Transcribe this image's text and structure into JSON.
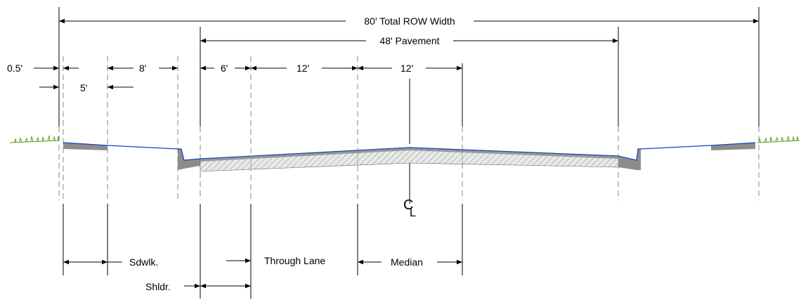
{
  "dimensions": {
    "row_width": "80' Total ROW Width",
    "pavement": "48' Pavement",
    "buffer": "0.5'",
    "sidewalk": "5'",
    "planting": "8'",
    "shoulder": "6'",
    "lane": "12'",
    "median": "12'"
  },
  "centerline": {
    "c": "C",
    "l": "L"
  },
  "callouts": {
    "sidewalk": "Sdwlk.",
    "shoulder": "Shldr.",
    "through_lane": "Through Lane",
    "median": "Median"
  },
  "colors": {
    "grade_line": "#1f3fbf",
    "concrete": "#8c8c8c",
    "grass": "#5a9a2a"
  }
}
